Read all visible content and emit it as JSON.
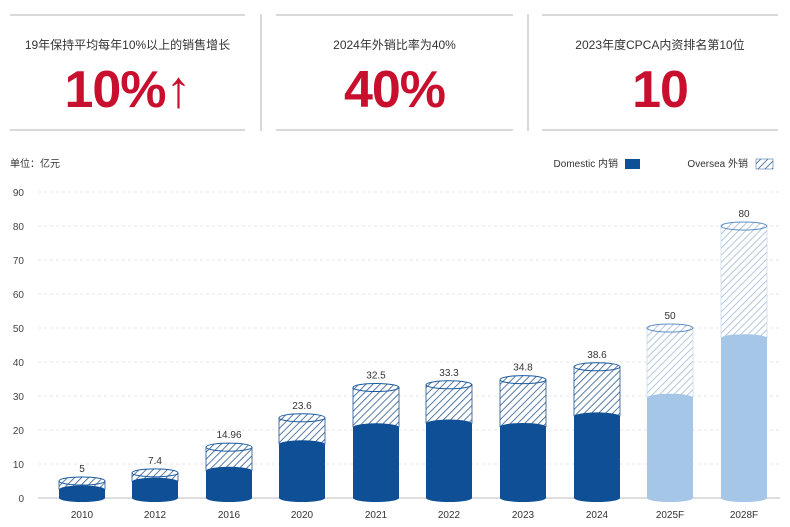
{
  "stats": [
    {
      "caption": "19年保持平均每年10%以上的销售增长",
      "value": "10%↑"
    },
    {
      "caption": "2024年外销比率为40%",
      "value": "40%"
    },
    {
      "caption": "2023年度CPCA内资排名第10位",
      "value": "10"
    }
  ],
  "colors": {
    "accent": "#c8102e",
    "domestic": "#0f4f96",
    "domestic_forecast": "#a6c6e8",
    "oversea_stripe": "#2c5b8f"
  },
  "chart_data": {
    "type": "bar",
    "stacked": true,
    "unit_label": "单位：亿元",
    "categories": [
      "2010",
      "2012",
      "2016",
      "2020",
      "2021",
      "2022",
      "2023",
      "2024",
      "2025F",
      "2028F"
    ],
    "forecast": [
      false,
      false,
      false,
      false,
      false,
      false,
      false,
      false,
      true,
      true
    ],
    "series": [
      {
        "name": "Domestic 内销",
        "values": [
          2.5,
          4.8,
          8,
          15.8,
          20.8,
          21.9,
          20.9,
          24,
          29.5,
          47
        ]
      },
      {
        "name": "Oversea 外销",
        "values": [
          2.5,
          2.6,
          6.96,
          7.8,
          11.7,
          11.4,
          13.9,
          14.6,
          20.5,
          33
        ]
      }
    ],
    "totals": [
      5,
      7.4,
      14.96,
      23.6,
      32.5,
      33.3,
      34.8,
      38.6,
      50,
      80
    ],
    "total_labels": [
      "5",
      "7.4",
      "14.96",
      "23.6",
      "32.5",
      "33.3",
      "34.8",
      "38.6",
      "50",
      "80"
    ],
    "ylim": [
      0,
      90
    ],
    "yticks": [
      0,
      10,
      20,
      30,
      40,
      50,
      60,
      70,
      80,
      90
    ],
    "grid": true,
    "legend_position": "top-right"
  }
}
